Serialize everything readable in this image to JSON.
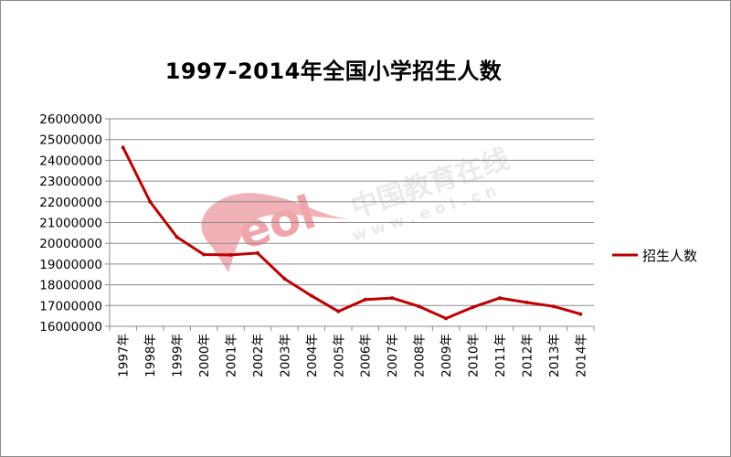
{
  "chart_data": {
    "type": "line",
    "title": "1997-2014年全国小学招生人数",
    "xlabel": "",
    "ylabel": "",
    "categories": [
      "1997年",
      "1998年",
      "1999年",
      "2000年",
      "2001年",
      "2002年",
      "2003年",
      "2004年",
      "2005年",
      "2006年",
      "2007年",
      "2008年",
      "2009年",
      "2010年",
      "2011年",
      "2012年",
      "2013年",
      "2014年"
    ],
    "series": [
      {
        "name": "招生人数",
        "color": "#c00000",
        "values": [
          24620000,
          22010000,
          20300000,
          19460000,
          19440000,
          19530000,
          18290000,
          17470000,
          16720000,
          17290000,
          17360000,
          16960000,
          16380000,
          16920000,
          17360000,
          17150000,
          16960000,
          16590000
        ]
      }
    ],
    "ylim": [
      16000000,
      26000000
    ],
    "yticks": [
      "26000000",
      "25000000",
      "24000000",
      "23000000",
      "22000000",
      "21000000",
      "20000000",
      "19000000",
      "18000000",
      "17000000",
      "16000000"
    ],
    "grid": true,
    "legend_position": "right"
  },
  "watermark": {
    "brand": "中国教育在线",
    "url": "w w w . e o l . c n",
    "logo": "eol",
    "color": "#e8707a"
  }
}
